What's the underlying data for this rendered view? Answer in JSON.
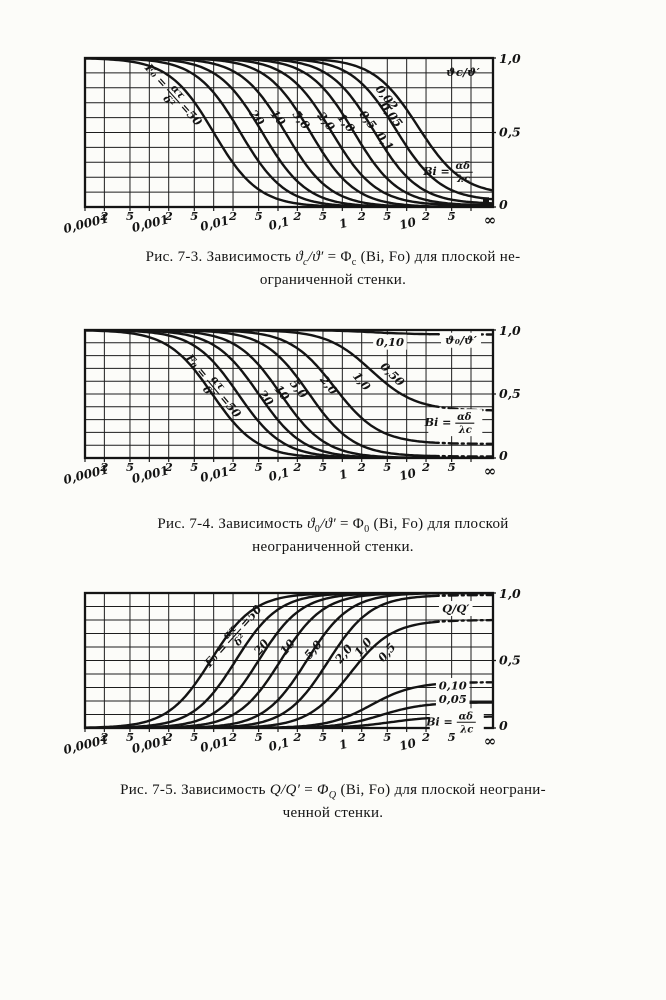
{
  "page": {
    "background": "#fcfcf9",
    "ink": "#141414"
  },
  "captions": [
    {
      "figure": "7-3",
      "lines": [
        [
          {
            "t": "Рис. 7-3. Зависимость "
          },
          {
            "t": "ϑ",
            "i": 1
          },
          {
            "t": "c",
            "s": 1,
            "i": 1
          },
          {
            "t": "/",
            "i": 1
          },
          {
            "t": "ϑ′",
            "i": 1
          },
          {
            "t": " = "
          },
          {
            "t": "Φ"
          },
          {
            "t": "c",
            "s": 1
          },
          {
            "t": " (Bi, Fo) для плоской не-"
          }
        ],
        [
          {
            "t": "ограниченной стенки."
          }
        ]
      ]
    },
    {
      "figure": "7-4",
      "lines": [
        [
          {
            "t": "Рис. 7-4. Зависимость "
          },
          {
            "t": "ϑ",
            "i": 1
          },
          {
            "t": "0",
            "s": 1
          },
          {
            "t": "/",
            "i": 1
          },
          {
            "t": "ϑ′",
            "i": 1
          },
          {
            "t": " = "
          },
          {
            "t": "Φ"
          },
          {
            "t": "0",
            "s": 1
          },
          {
            "t": " (Bi, Fo) для плоской"
          }
        ],
        [
          {
            "t": "неограниченной стенки."
          }
        ]
      ]
    },
    {
      "figure": "7-5",
      "lines": [
        [
          {
            "t": "Рис. 7-5. Зависимость "
          },
          {
            "t": "Q/Q′",
            "i": 1
          },
          {
            "t": " = "
          },
          {
            "t": "Φ",
            "i": 1
          },
          {
            "t": "Q",
            "s": 1,
            "i": 1
          },
          {
            "t": " (Bi, Fo) для плоской неограни-"
          }
        ],
        [
          {
            "t": "ченной стенки."
          }
        ]
      ]
    }
  ],
  "chart_data": [
    {
      "type": "line",
      "figure": "Рис. 7-3",
      "title": "ϑc/ϑ′ = Φc (Bi, Fo) для плоской неограниченной стенки",
      "inner_title": "ϑc/ϑ′",
      "x_axis": {
        "scale": "log",
        "range": [
          0.0001,
          100
        ],
        "label_pre": "Bi =",
        "label_num": "αδ",
        "label_den": "λc",
        "ticks": [
          "0,0001",
          "2",
          "5",
          "0,001",
          "2",
          "5",
          "0,01",
          "2",
          "5",
          "0,1",
          "2",
          "5",
          "1",
          "2",
          "5",
          "10",
          "2",
          "5",
          "∞"
        ]
      },
      "y_axis": {
        "range": [
          0,
          1
        ],
        "ticks": [
          "1,0",
          "0,5",
          "0"
        ],
        "grid_step": 0.1
      },
      "family_parameter": "Fo = ατ/δ²",
      "curves": [
        {
          "fo": "50",
          "dir": "down",
          "mid_bi": 0.01,
          "p": 1.25,
          "y_left": 1.0,
          "y_right": 0.0
        },
        {
          "fo": "20",
          "dir": "down",
          "mid_bi": 0.026,
          "p": 1.25,
          "y_left": 1.0,
          "y_right": 0.0
        },
        {
          "fo": "10",
          "dir": "down",
          "mid_bi": 0.057,
          "p": 1.25,
          "y_left": 1.0,
          "y_right": 0.0
        },
        {
          "fo": "5,0",
          "dir": "down",
          "mid_bi": 0.13,
          "p": 1.25,
          "y_left": 1.0,
          "y_right": 0.0
        },
        {
          "fo": "2,0",
          "dir": "down",
          "mid_bi": 0.32,
          "p": 1.25,
          "y_left": 1.0,
          "y_right": 0.0
        },
        {
          "fo": "1,0",
          "dir": "down",
          "mid_bi": 0.68,
          "p": 1.25,
          "y_left": 1.0,
          "y_right": 0.01
        },
        {
          "fo": "0,5",
          "dir": "down",
          "mid_bi": 1.5,
          "p": 1.25,
          "y_left": 1.0,
          "y_right": 0.01
        },
        {
          "fo": "0,1",
          "dir": "down",
          "mid_bi": 3.1,
          "p": 1.25,
          "y_left": 1.0,
          "y_right": 0.02
        },
        {
          "fo": "0,05",
          "dir": "down",
          "mid_bi": 6.8,
          "p": 1.25,
          "y_left": 1.0,
          "y_right": 0.04
        },
        {
          "fo": "0,02",
          "dir": "down",
          "mid_bi": 15.0,
          "p": 1.25,
          "y_left": 1.0,
          "y_right": 0.08
        }
      ],
      "curve_labels": [
        {
          "t": "20",
          "x": 0.047,
          "y": 0.6,
          "r": 52
        },
        {
          "t": "10",
          "x": 0.1,
          "y": 0.6,
          "r": 52
        },
        {
          "t": "5,0",
          "x": 0.23,
          "y": 0.585,
          "r": 52
        },
        {
          "t": "2,0",
          "x": 0.56,
          "y": 0.575,
          "r": 52
        },
        {
          "t": "1,0",
          "x": 1.15,
          "y": 0.565,
          "r": 52
        },
        {
          "t": "0,5",
          "x": 2.5,
          "y": 0.585,
          "r": 52
        },
        {
          "t": "0,1",
          "x": 4.6,
          "y": 0.44,
          "r": 52
        },
        {
          "t": "0,05",
          "x": 5.8,
          "y": 0.62,
          "r": 52
        },
        {
          "t": "0,02",
          "x": 4.9,
          "y": 0.735,
          "r": 52
        },
        {
          "t": "ϑc/ϑ′",
          "x": 75,
          "y": 0.905,
          "r": 0,
          "b": 0
        }
      ],
      "fo_label": {
        "pre": "F₀ =",
        "num": "ατ",
        "den": "δ²",
        "suf": "=50",
        "x": 0.0019,
        "y": 0.8,
        "r": 48
      },
      "bi_label": {
        "pre": "Bi =",
        "num": "αδ",
        "den": "λc",
        "x": 52,
        "y": 0.24,
        "b": 0
      },
      "end_marker": {
        "y": 0.045
      }
    },
    {
      "type": "line",
      "figure": "Рис. 7-4",
      "title": "ϑ0/ϑ′ = Φ0 (Bi, Fo) для плоской неограниченной стенки",
      "inner_title": "ϑ₀/ϑ′",
      "x_axis": {
        "scale": "log",
        "range": [
          0.0001,
          100
        ],
        "label_pre": "Bi =",
        "label_num": "αδ",
        "label_den": "λc",
        "ticks": [
          "0,0001",
          "2",
          "5",
          "0,001",
          "2",
          "5",
          "0,01",
          "2",
          "5",
          "0,1",
          "2",
          "5",
          "1",
          "2",
          "5",
          "10",
          "2",
          "5",
          "∞"
        ]
      },
      "y_axis": {
        "range": [
          0,
          1
        ],
        "ticks": [
          "1,0",
          "0,5",
          "0"
        ],
        "grid_step": 0.1
      },
      "family_parameter": "Fo = ατ/δ²",
      "curves": [
        {
          "fo": "50",
          "dir": "down",
          "mid_bi": 0.0095,
          "p": 1.25,
          "y_left": 1.0,
          "y_right": 0.0
        },
        {
          "fo": "20",
          "dir": "down",
          "mid_bi": 0.024,
          "p": 1.25,
          "y_left": 1.0,
          "y_right": 0.0
        },
        {
          "fo": "10",
          "dir": "down",
          "mid_bi": 0.05,
          "p": 1.25,
          "y_left": 1.0,
          "y_right": 0.0
        },
        {
          "fo": "5,0",
          "dir": "down",
          "mid_bi": 0.11,
          "p": 1.25,
          "y_left": 1.0,
          "y_right": 0.0
        },
        {
          "fo": "2,0",
          "dir": "down",
          "mid_bi": 0.3,
          "p": 1.25,
          "y_left": 1.0,
          "y_right": 0.012,
          "dash": 1
        },
        {
          "fo": "1,0",
          "dir": "down",
          "mid_bi": 0.75,
          "p": 1.25,
          "y_left": 1.0,
          "y_right": 0.11,
          "dash": 1
        },
        {
          "fo": "0,50",
          "dir": "down",
          "mid_bi": 2.8,
          "p": 1.25,
          "y_left": 1.0,
          "y_right": 0.37,
          "dash": 1
        },
        {
          "fo": "0,10",
          "dir": "down",
          "mid_bi": 3.0,
          "p": 1.25,
          "y_left": 1.0,
          "y_right": 0.965,
          "dash": 1
        }
      ],
      "curve_labels": [
        {
          "t": "20",
          "x": 0.065,
          "y": 0.47,
          "r": 52
        },
        {
          "t": "10",
          "x": 0.115,
          "y": 0.51,
          "r": 52
        },
        {
          "t": "5,0",
          "x": 0.21,
          "y": 0.54,
          "r": 52
        },
        {
          "t": "2,0",
          "x": 0.62,
          "y": 0.57,
          "r": 52
        },
        {
          "t": "1,0",
          "x": 2.0,
          "y": 0.6,
          "r": 50
        },
        {
          "t": "0,50",
          "x": 6.0,
          "y": 0.655,
          "r": 45
        },
        {
          "t": "0,10",
          "x": 5.5,
          "y": 0.905,
          "r": 0,
          "b": 1
        },
        {
          "t": "ϑ₀/ϑ′",
          "x": 70,
          "y": 0.92,
          "r": 0,
          "b": 1
        }
      ],
      "fo_label": {
        "pre": "F₀ =",
        "num": "ατ",
        "den": "δ²",
        "suf": "=50",
        "x": 0.008,
        "y": 0.62,
        "r": 50
      },
      "bi_label": {
        "pre": "Bi =",
        "num": "αδ",
        "den": "λc",
        "x": 55,
        "y": 0.28,
        "b": 1
      }
    },
    {
      "type": "line",
      "figure": "Рис. 7-5",
      "title": "Q/Q′ = ΦQ (Bi, Fo) для плоской неограниченной стенки",
      "inner_title": "Q/Q′",
      "x_axis": {
        "scale": "log",
        "range": [
          0.0001,
          100
        ],
        "label_pre": "Bi =",
        "label_num": "αδ",
        "label_den": "λc",
        "ticks": [
          "0,0001",
          "2",
          "5",
          "0,001",
          "2",
          "5",
          "0,01",
          "2",
          "5",
          "0,1",
          "2",
          "5",
          "1",
          "2",
          "5",
          "10",
          "2",
          "5",
          "∞"
        ]
      },
      "y_axis": {
        "range": [
          0,
          1
        ],
        "ticks": [
          "1,0",
          "0,5",
          "0"
        ],
        "grid_step": 0.1
      },
      "family_parameter": "Fo = ατ/δ²",
      "curves": [
        {
          "fo": "50",
          "dir": "up",
          "mid_bi": 0.009,
          "p": 1.3,
          "y_left": 0.0,
          "y_right": 1.0
        },
        {
          "fo": "20",
          "dir": "up",
          "mid_bi": 0.022,
          "p": 1.3,
          "y_left": 0.0,
          "y_right": 1.0
        },
        {
          "fo": "10",
          "dir": "up",
          "mid_bi": 0.05,
          "p": 1.3,
          "y_left": 0.0,
          "y_right": 1.0
        },
        {
          "fo": "5,0",
          "dir": "up",
          "mid_bi": 0.11,
          "p": 1.3,
          "y_left": 0.0,
          "y_right": 1.0
        },
        {
          "fo": "2,0",
          "dir": "up",
          "mid_bi": 0.28,
          "p": 1.3,
          "y_left": 0.0,
          "y_right": 1.0
        },
        {
          "fo": "1,0",
          "dir": "up",
          "mid_bi": 0.6,
          "p": 1.3,
          "y_left": 0.0,
          "y_right": 0.985,
          "dash": 1
        },
        {
          "fo": "0,5",
          "dir": "up",
          "mid_bi": 1.3,
          "p": 1.3,
          "y_left": 0.0,
          "y_right": 0.8,
          "dash": 1
        },
        {
          "fo": "0,10",
          "dir": "up",
          "mid_bi": 2.8,
          "p": 1.3,
          "y_left": 0.0,
          "y_right": 0.34,
          "dash": 1
        },
        {
          "fo": "0,05",
          "dir": "up",
          "mid_bi": 4.0,
          "p": 1.3,
          "y_left": 0.0,
          "y_right": 0.19
        },
        {
          "fo": "0,02",
          "dir": "up",
          "mid_bi": 5.5,
          "p": 1.3,
          "y_left": 0.0,
          "y_right": 0.085
        }
      ],
      "curve_labels": [
        {
          "t": "20",
          "x": 0.055,
          "y": 0.6,
          "r": -50
        },
        {
          "t": "10",
          "x": 0.14,
          "y": 0.6,
          "r": -50
        },
        {
          "t": "5,0",
          "x": 0.35,
          "y": 0.58,
          "r": -50
        },
        {
          "t": "2,0",
          "x": 1.05,
          "y": 0.55,
          "r": -50
        },
        {
          "t": "1,0",
          "x": 2.1,
          "y": 0.6,
          "r": -50
        },
        {
          "t": "0,5",
          "x": 4.9,
          "y": 0.56,
          "r": -50
        },
        {
          "t": "0,10",
          "x": 52,
          "y": 0.315,
          "r": 0,
          "b": 1
        },
        {
          "t": "0,05",
          "x": 52,
          "y": 0.215,
          "r": 0,
          "b": 1
        },
        {
          "t": "0,02",
          "x": 52,
          "y": 0.11,
          "r": 0,
          "b": 1
        },
        {
          "t": "Q/Q′",
          "x": 58,
          "y": 0.885,
          "r": 0,
          "b": 1
        }
      ],
      "fo_label": {
        "pre": "F₀ =",
        "num": "ατ",
        "den": "δ²",
        "suf": "=50",
        "x": 0.016,
        "y": 0.63,
        "r": -48
      },
      "bi_label": {
        "pre": "Bi =",
        "num": "αδ",
        "den": "λc",
        "x": 58,
        "y": 0.05,
        "b": 1
      }
    }
  ]
}
